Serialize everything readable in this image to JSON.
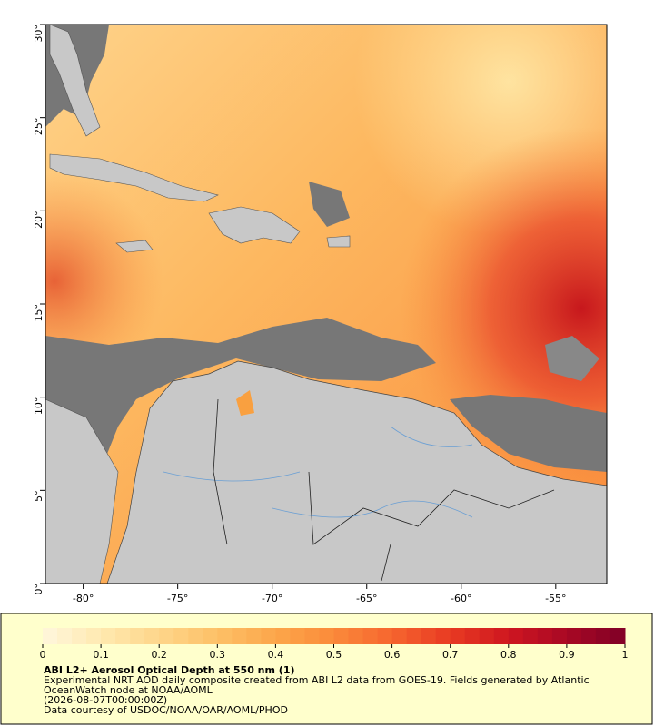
{
  "map": {
    "xlim": [
      -82,
      -52.3
    ],
    "ylim": [
      0,
      30
    ],
    "xticks": [
      {
        "value": -80,
        "label": "-80°"
      },
      {
        "value": -75,
        "label": "-75°"
      },
      {
        "value": -70,
        "label": "-70°"
      },
      {
        "value": -65,
        "label": "-65°"
      },
      {
        "value": -60,
        "label": "-60°"
      },
      {
        "value": -55,
        "label": "-55°"
      }
    ],
    "yticks": [
      {
        "value": 0,
        "label": "0°"
      },
      {
        "value": 5,
        "label": "5°"
      },
      {
        "value": 10,
        "label": "10°"
      },
      {
        "value": 15,
        "label": "15°"
      },
      {
        "value": 20,
        "label": "20°"
      },
      {
        "value": 25,
        "label": "25°"
      },
      {
        "value": 30,
        "label": "30°"
      }
    ]
  },
  "colorbar": {
    "lim": [
      0,
      1
    ],
    "ticks": [
      0,
      0.1,
      0.2,
      0.3,
      0.4,
      0.5,
      0.6,
      0.7,
      0.8,
      0.9,
      1
    ],
    "colors": [
      "#fff7dc",
      "#ffe9b0",
      "#fed68a",
      "#fdc066",
      "#fca64a",
      "#fb8a3a",
      "#f6652e",
      "#e83a22",
      "#cf1620",
      "#a80824",
      "#800026"
    ]
  },
  "caption": {
    "title": "ABI L2+ Aerosol Optical Depth at 550 nm (1)",
    "lines": [
      "Experimental NRT AOD daily composite created from ABI L2 data from GOES-19. Fields generated by Atlantic",
      "OceanWatch node at NOAA/AOML",
      "(2026-08-07T00:00:00Z)",
      "Data courtesy of USDOC/NOAA/OAR/AOML/PHOD"
    ]
  }
}
